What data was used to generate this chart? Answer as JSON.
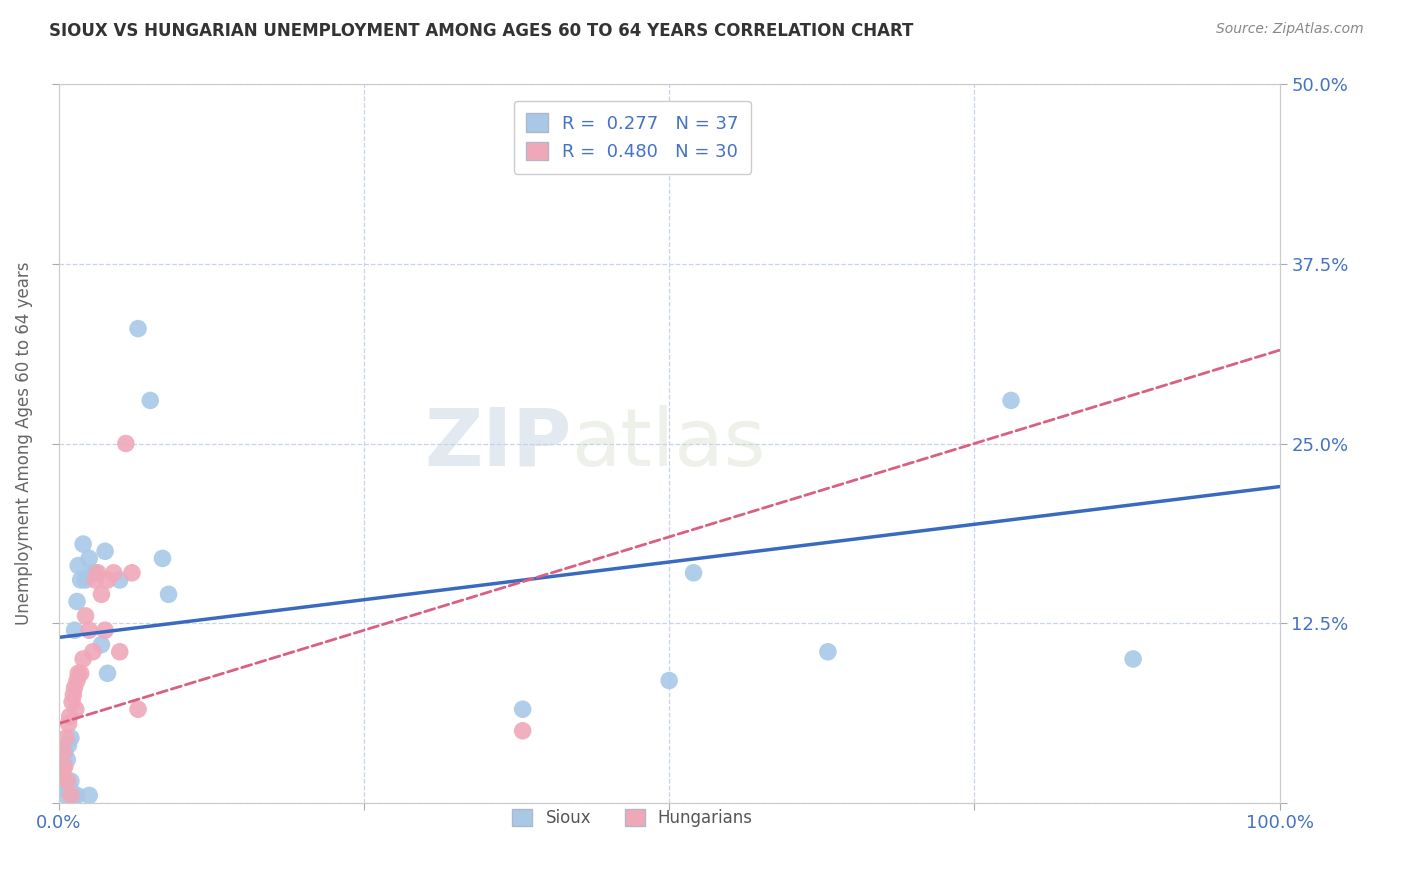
{
  "title": "SIOUX VS HUNGARIAN UNEMPLOYMENT AMONG AGES 60 TO 64 YEARS CORRELATION CHART",
  "source": "Source: ZipAtlas.com",
  "ylabel": "Unemployment Among Ages 60 to 64 years",
  "xlim": [
    0.0,
    1.0
  ],
  "ylim": [
    0.0,
    0.5
  ],
  "xticks": [
    0.0,
    0.25,
    0.5,
    0.75,
    1.0
  ],
  "xticklabels": [
    "0.0%",
    "",
    "",
    "",
    "100.0%"
  ],
  "yticks": [
    0.0,
    0.125,
    0.25,
    0.375,
    0.5
  ],
  "yticklabels": [
    "",
    "12.5%",
    "25.0%",
    "37.5%",
    "50.0%"
  ],
  "sioux_R": 0.277,
  "sioux_N": 37,
  "hungarian_R": 0.48,
  "hungarian_N": 30,
  "sioux_color": "#a8c8e8",
  "hungarian_color": "#f0a8b8",
  "sioux_line_color": "#3a6abf",
  "hungarian_line_color": "#d96080",
  "watermark_part1": "ZIP",
  "watermark_part2": "atlas",
  "legend_label_sioux": "Sioux",
  "legend_label_hungarian": "Hungarians",
  "sioux_x": [
    0.003,
    0.003,
    0.004,
    0.005,
    0.006,
    0.007,
    0.007,
    0.008,
    0.009,
    0.01,
    0.01,
    0.012,
    0.013,
    0.015,
    0.015,
    0.016,
    0.018,
    0.02,
    0.022,
    0.025,
    0.025,
    0.028,
    0.03,
    0.035,
    0.038,
    0.04,
    0.05,
    0.065,
    0.075,
    0.085,
    0.09,
    0.38,
    0.5,
    0.52,
    0.63,
    0.78,
    0.88
  ],
  "sioux_y": [
    0.01,
    0.02,
    0.025,
    0.035,
    0.005,
    0.015,
    0.03,
    0.04,
    0.01,
    0.045,
    0.015,
    0.005,
    0.12,
    0.005,
    0.14,
    0.165,
    0.155,
    0.18,
    0.155,
    0.17,
    0.005,
    0.16,
    0.16,
    0.11,
    0.175,
    0.09,
    0.155,
    0.33,
    0.28,
    0.17,
    0.145,
    0.065,
    0.085,
    0.16,
    0.105,
    0.28,
    0.1
  ],
  "hungarian_x": [
    0.003,
    0.004,
    0.005,
    0.006,
    0.007,
    0.008,
    0.009,
    0.01,
    0.011,
    0.012,
    0.013,
    0.014,
    0.015,
    0.016,
    0.018,
    0.02,
    0.022,
    0.025,
    0.028,
    0.03,
    0.032,
    0.035,
    0.038,
    0.04,
    0.045,
    0.05,
    0.055,
    0.06,
    0.065,
    0.38
  ],
  "hungarian_y": [
    0.02,
    0.035,
    0.025,
    0.045,
    0.015,
    0.055,
    0.06,
    0.005,
    0.07,
    0.075,
    0.08,
    0.065,
    0.085,
    0.09,
    0.09,
    0.1,
    0.13,
    0.12,
    0.105,
    0.155,
    0.16,
    0.145,
    0.12,
    0.155,
    0.16,
    0.105,
    0.25,
    0.16,
    0.065,
    0.05
  ],
  "background_color": "#ffffff",
  "grid_color": "#c8d4e8",
  "title_color": "#333333",
  "source_color": "#888888",
  "tick_color": "#4472c4",
  "ylabel_color": "#666666"
}
